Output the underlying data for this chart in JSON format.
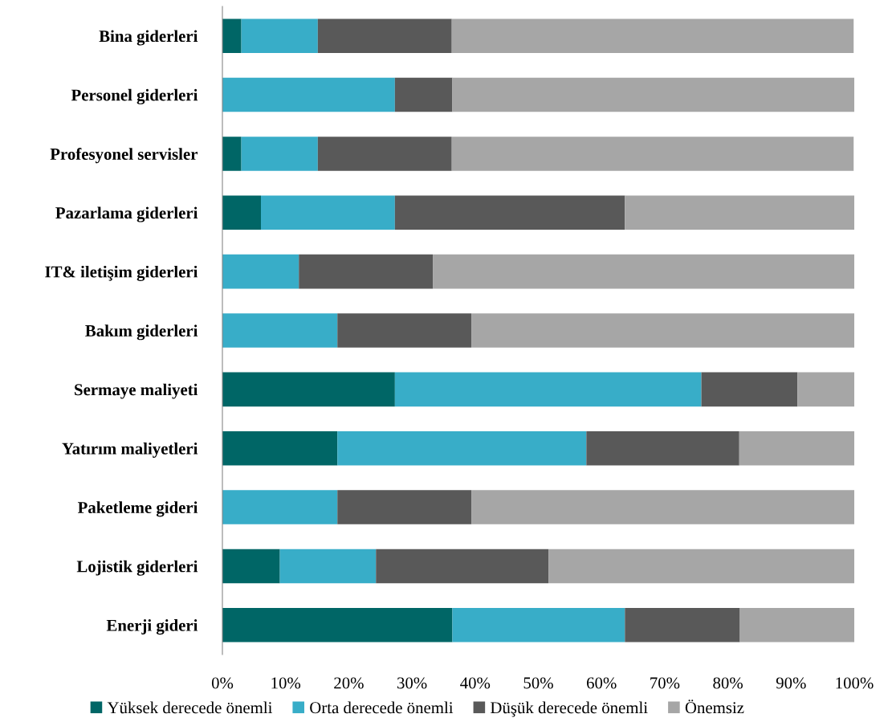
{
  "chart_data": {
    "type": "bar",
    "orientation": "horizontal",
    "stacked": true,
    "legend": "bottom",
    "grid": false,
    "categories": [
      "Bina giderleri",
      "Personel giderleri",
      "Profesyonel servisler",
      "Pazarlama giderleri",
      "IT& iletişim giderleri",
      "Bakım giderleri",
      "Sermaye maliyeti",
      "Yatırım maliyetleri",
      "Paketleme gideri",
      "Lojistik giderleri",
      "Enerji gideri"
    ],
    "xlim": [
      0,
      100
    ],
    "xticks": [
      {
        "value": 0,
        "label": "0%"
      },
      {
        "value": 10,
        "label": "10%"
      },
      {
        "value": 20,
        "label": "20%"
      },
      {
        "value": 30,
        "label": "30%"
      },
      {
        "value": 40,
        "label": "40%"
      },
      {
        "value": 50,
        "label": "50%"
      },
      {
        "value": 60,
        "label": "60%"
      },
      {
        "value": 70,
        "label": "70%"
      },
      {
        "value": 80,
        "label": "80%"
      },
      {
        "value": 90,
        "label": "90%"
      },
      {
        "value": 100,
        "label": "100%"
      }
    ],
    "series": [
      {
        "name": "Yüksek derecede önemli",
        "color": "#006666",
        "values": [
          3.0,
          0,
          3.0,
          6.1,
          0,
          0,
          27.3,
          18.2,
          0,
          9.1,
          36.4
        ]
      },
      {
        "name": "Orta derecede önemli",
        "color": "#38adc8",
        "values": [
          12.1,
          27.3,
          12.1,
          21.2,
          12.1,
          18.2,
          48.5,
          39.4,
          18.2,
          15.2,
          27.3
        ]
      },
      {
        "name": "Düşük derecede önemli",
        "color": "#595959",
        "values": [
          21.2,
          9.1,
          21.2,
          36.4,
          21.2,
          21.2,
          15.2,
          24.2,
          21.2,
          27.3,
          18.2
        ]
      },
      {
        "name": "Önemsiz",
        "color": "#a6a6a6",
        "values": [
          63.6,
          63.6,
          63.6,
          36.4,
          66.7,
          60.6,
          9.1,
          18.2,
          60.6,
          48.5,
          18.2
        ]
      }
    ]
  }
}
